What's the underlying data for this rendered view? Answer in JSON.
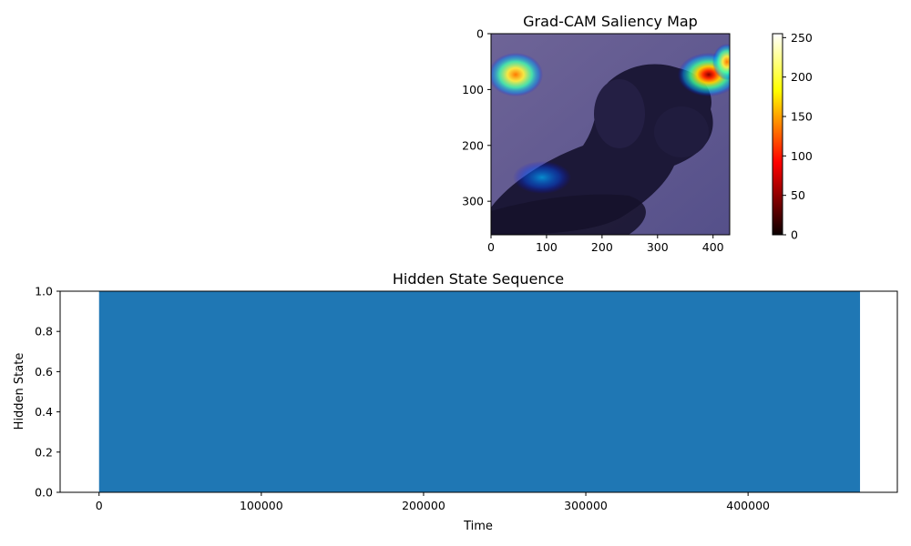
{
  "chart_data": [
    {
      "type": "heatmap",
      "title": "Grad-CAM Saliency Map",
      "xlabel": "",
      "ylabel": "",
      "xlim": [
        0,
        430
      ],
      "ylim": [
        360,
        0
      ],
      "x_ticks": [
        0,
        100,
        200,
        300,
        400
      ],
      "y_ticks": [
        0,
        100,
        200,
        300
      ],
      "x_tick_labels": [
        "0",
        "100",
        "200",
        "300",
        "400"
      ],
      "y_tick_labels": [
        "0",
        "100",
        "200",
        "300"
      ],
      "image": {
        "subject": "black dog lying down (photo) with jet-colormap saliency overlay",
        "hotspots": [
          {
            "x": 45,
            "y": 75,
            "intensity": 0.75
          },
          {
            "x": 385,
            "y": 75,
            "intensity": 1.0
          },
          {
            "x": 415,
            "y": 60,
            "intensity": 0.6
          },
          {
            "x": 90,
            "y": 258,
            "intensity": 0.35
          }
        ]
      },
      "colorbar": {
        "colormap": "hot",
        "range": [
          0,
          255
        ],
        "ticks": [
          0,
          50,
          100,
          150,
          200,
          250
        ],
        "tick_labels": [
          "0",
          "50",
          "100",
          "150",
          "200",
          "250"
        ]
      }
    },
    {
      "type": "bar",
      "title": "Hidden State Sequence",
      "xlabel": "Time",
      "ylabel": "Hidden State",
      "xlim": [
        -24000,
        492000
      ],
      "ylim": [
        0,
        1
      ],
      "x_ticks": [
        0,
        100000,
        200000,
        300000,
        400000
      ],
      "x_tick_labels": [
        "0",
        "100000",
        "200000",
        "300000",
        "400000"
      ],
      "y_ticks": [
        0,
        0.2,
        0.4,
        0.6,
        0.8,
        1.0
      ],
      "y_tick_labels": [
        "0.0",
        "0.2",
        "0.4",
        "0.6",
        "0.8",
        "1.0"
      ],
      "series": [
        {
          "x_start": 0,
          "x_end": 469000,
          "value": 1,
          "color": "#1f77b4"
        }
      ]
    }
  ]
}
